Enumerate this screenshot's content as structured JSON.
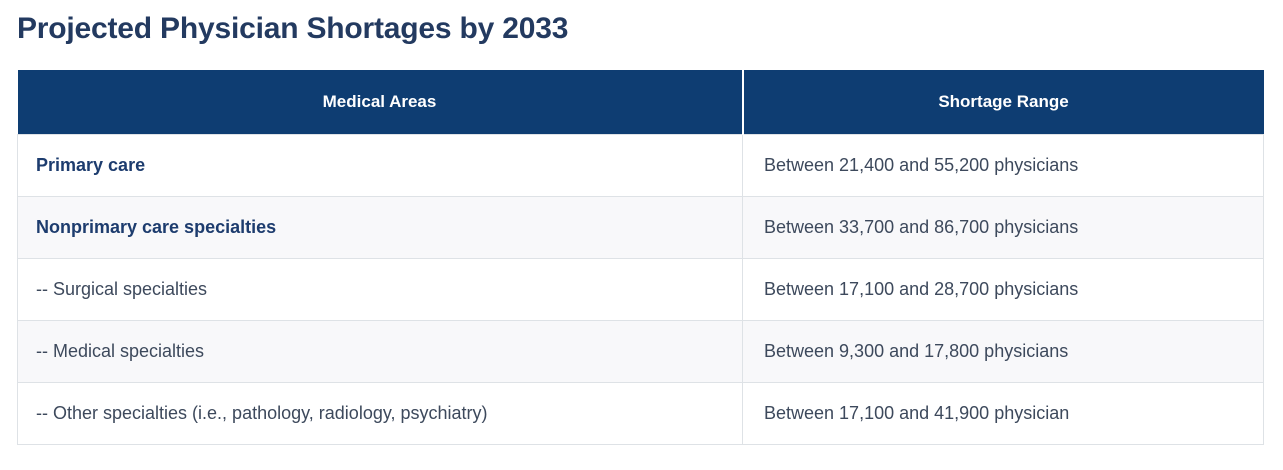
{
  "page": {
    "title": "Projected Physician Shortages by 2033"
  },
  "chart_data": {
    "type": "table",
    "title": "Projected Physician Shortages by 2033",
    "columns": [
      "Medical Areas",
      "Shortage Range"
    ],
    "rows": [
      {
        "area": "Primary care",
        "range": "Between 21,400 and 55,200 physicians",
        "category": true
      },
      {
        "area": "Nonprimary care specialties",
        "range": "Between 33,700 and 86,700 physicians",
        "category": true
      },
      {
        "area": "-- Surgical specialties",
        "range": "Between 17,100 and 28,700 physicians",
        "category": false
      },
      {
        "area": "-- Medical specialties",
        "range": "Between 9,300 and 17,800 physicians",
        "category": false
      },
      {
        "area": "-- Other specialties (i.e., pathology, radiology, psychiatry)",
        "range": "Between 17,100 and 41,900 physician",
        "category": false
      }
    ]
  },
  "colors": {
    "header_background": "#0e3d72",
    "header_text": "#ffffff",
    "title_text": "#233a60",
    "category_text": "#1d3c6e",
    "body_text": "#3d495c",
    "border": "#dee2e6",
    "alt_row_background": "#f8f8fa"
  }
}
